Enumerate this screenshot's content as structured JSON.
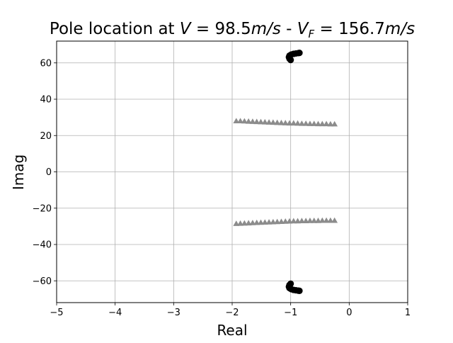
{
  "chart_data": {
    "type": "scatter",
    "title_parts": {
      "prefix": "Pole location at ",
      "v_sym": "V",
      "eq1": " = 98.5",
      "v_unit": "m/s",
      "sep": " - ",
      "vf_sym": "V",
      "vf_sub": "F",
      "eq2": " = 156.7",
      "vf_unit": "m/s"
    },
    "xlabel": "Real",
    "ylabel": "Imag",
    "xlim": [
      -5,
      1
    ],
    "ylim": [
      -72,
      72
    ],
    "xticks": [
      -5,
      -4,
      -3,
      -2,
      -1,
      0,
      1
    ],
    "yticks": [
      -60,
      -40,
      -20,
      0,
      20,
      40,
      60
    ],
    "xtick_labels": [
      "−5",
      "−4",
      "−3",
      "−2",
      "−1",
      "0",
      "1"
    ],
    "ytick_labels": [
      "−60",
      "−40",
      "−20",
      "0",
      "20",
      "40",
      "60"
    ],
    "grid": true,
    "series": [
      {
        "marker": "circle",
        "color": "#000000",
        "points": [
          [
            -1.0,
            61.6
          ],
          [
            -1.02,
            62.3
          ],
          [
            -1.03,
            63.2
          ],
          [
            -1.02,
            64.0
          ],
          [
            -0.99,
            64.6
          ],
          [
            -0.95,
            65.0
          ],
          [
            -0.91,
            65.2
          ],
          [
            -0.87,
            65.4
          ],
          [
            -0.85,
            65.5
          ],
          [
            -1.0,
            -61.6
          ],
          [
            -1.02,
            -62.3
          ],
          [
            -1.03,
            -63.2
          ],
          [
            -1.02,
            -64.0
          ],
          [
            -0.99,
            -64.6
          ],
          [
            -0.95,
            -65.0
          ],
          [
            -0.91,
            -65.2
          ],
          [
            -0.87,
            -65.4
          ],
          [
            -0.85,
            -65.5
          ]
        ]
      },
      {
        "marker": "triangle",
        "color": "#8c8c8c",
        "points": [
          [
            -1.93,
            28.0
          ],
          [
            -1.86,
            28.0
          ],
          [
            -1.79,
            27.9
          ],
          [
            -1.72,
            27.8
          ],
          [
            -1.65,
            27.7
          ],
          [
            -1.58,
            27.6
          ],
          [
            -1.51,
            27.5
          ],
          [
            -1.44,
            27.4
          ],
          [
            -1.37,
            27.3
          ],
          [
            -1.3,
            27.2
          ],
          [
            -1.23,
            27.1
          ],
          [
            -1.16,
            27.0
          ],
          [
            -1.09,
            26.9
          ],
          [
            -1.02,
            26.8
          ],
          [
            -0.95,
            26.8
          ],
          [
            -0.88,
            26.7
          ],
          [
            -0.81,
            26.6
          ],
          [
            -0.74,
            26.6
          ],
          [
            -0.67,
            26.5
          ],
          [
            -0.6,
            26.5
          ],
          [
            -0.53,
            26.4
          ],
          [
            -0.46,
            26.4
          ],
          [
            -0.39,
            26.4
          ],
          [
            -0.32,
            26.3
          ],
          [
            -0.25,
            26.3
          ],
          [
            -1.93,
            -28.5
          ],
          [
            -1.86,
            -28.4
          ],
          [
            -1.79,
            -28.3
          ],
          [
            -1.72,
            -28.2
          ],
          [
            -1.65,
            -28.1
          ],
          [
            -1.58,
            -28.0
          ],
          [
            -1.51,
            -27.9
          ],
          [
            -1.44,
            -27.8
          ],
          [
            -1.37,
            -27.7
          ],
          [
            -1.3,
            -27.6
          ],
          [
            -1.23,
            -27.5
          ],
          [
            -1.16,
            -27.4
          ],
          [
            -1.09,
            -27.3
          ],
          [
            -1.02,
            -27.2
          ],
          [
            -0.95,
            -27.1
          ],
          [
            -0.88,
            -27.1
          ],
          [
            -0.81,
            -27.0
          ],
          [
            -0.74,
            -27.0
          ],
          [
            -0.67,
            -26.9
          ],
          [
            -0.6,
            -26.9
          ],
          [
            -0.53,
            -26.9
          ],
          [
            -0.46,
            -26.8
          ],
          [
            -0.39,
            -26.8
          ],
          [
            -0.32,
            -26.8
          ],
          [
            -0.25,
            -26.8
          ]
        ]
      }
    ]
  }
}
